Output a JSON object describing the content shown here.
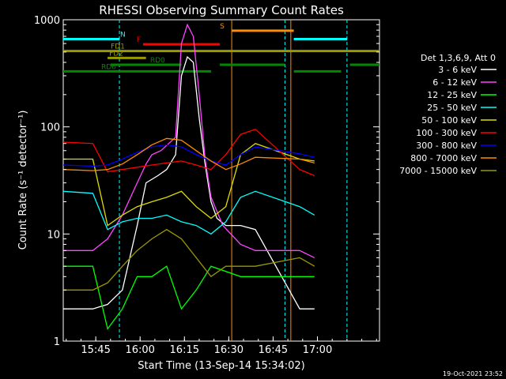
{
  "chart_data": {
    "type": "line",
    "title": "RHESSI Observing Summary Count Rates",
    "xlabel": "Start Time (13-Sep-14 15:34:02)",
    "ylabel": "Count Rate (s⁻¹ detector⁻¹)",
    "y_scale": "log",
    "ylim": [
      1,
      1000
    ],
    "xlim_minutes": [
      0,
      107
    ],
    "x_ticks": [
      {
        "label": "15:45",
        "t": 11
      },
      {
        "label": "16:00",
        "t": 26
      },
      {
        "label": "16:15",
        "t": 41
      },
      {
        "label": "16:30",
        "t": 56
      },
      {
        "label": "16:45",
        "t": 71
      },
      {
        "label": "17:00",
        "t": 86
      }
    ],
    "y_ticks": [
      {
        "label": "1",
        "v": 1
      },
      {
        "label": "10",
        "v": 10
      },
      {
        "label": "100",
        "v": 100
      },
      {
        "label": "1000",
        "v": 1000
      }
    ],
    "legend_header": "Det 1,3,6,9, Att 0",
    "legend_placement": "right",
    "timestamp": "19-Oct-2021 23:52",
    "series": [
      {
        "name": "3 - 6 keV",
        "color": "#ffffff",
        "points": [
          [
            0,
            2
          ],
          [
            10,
            2
          ],
          [
            15,
            2.2
          ],
          [
            20,
            3
          ],
          [
            25,
            12
          ],
          [
            28,
            30
          ],
          [
            32,
            35
          ],
          [
            35,
            40
          ],
          [
            38,
            55
          ],
          [
            40,
            300
          ],
          [
            42,
            450
          ],
          [
            44,
            400
          ],
          [
            46,
            120
          ],
          [
            48,
            45
          ],
          [
            50,
            20
          ],
          [
            52,
            14
          ],
          [
            55,
            12
          ],
          [
            60,
            12
          ],
          [
            65,
            11
          ],
          [
            80,
            2
          ],
          [
            85,
            2
          ]
        ]
      },
      {
        "name": "6 - 12 keV",
        "color": "#ff44ff",
        "points": [
          [
            0,
            7
          ],
          [
            10,
            7
          ],
          [
            15,
            9
          ],
          [
            20,
            15
          ],
          [
            25,
            30
          ],
          [
            28,
            45
          ],
          [
            30,
            55
          ],
          [
            33,
            60
          ],
          [
            38,
            80
          ],
          [
            40,
            600
          ],
          [
            42,
            900
          ],
          [
            44,
            700
          ],
          [
            46,
            200
          ],
          [
            48,
            50
          ],
          [
            50,
            22
          ],
          [
            54,
            12
          ],
          [
            60,
            8
          ],
          [
            65,
            7
          ],
          [
            80,
            7
          ],
          [
            85,
            6
          ]
        ]
      },
      {
        "name": "12 - 25 keV",
        "color": "#00ff00",
        "points": [
          [
            0,
            5
          ],
          [
            10,
            5
          ],
          [
            15,
            1.3
          ],
          [
            20,
            2
          ],
          [
            25,
            4
          ],
          [
            30,
            4
          ],
          [
            35,
            5
          ],
          [
            40,
            2
          ],
          [
            45,
            3
          ],
          [
            50,
            5
          ],
          [
            60,
            4
          ],
          [
            65,
            4
          ],
          [
            80,
            4
          ],
          [
            85,
            4
          ]
        ]
      },
      {
        "name": "25 - 50 keV",
        "color": "#00ffff",
        "points": [
          [
            0,
            25
          ],
          [
            10,
            24
          ],
          [
            15,
            11
          ],
          [
            20,
            13
          ],
          [
            25,
            14
          ],
          [
            30,
            14
          ],
          [
            35,
            15
          ],
          [
            40,
            13
          ],
          [
            45,
            12
          ],
          [
            50,
            10
          ],
          [
            55,
            13
          ],
          [
            60,
            22
          ],
          [
            65,
            25
          ],
          [
            80,
            18
          ],
          [
            85,
            15
          ]
        ]
      },
      {
        "name": "50 - 100 keV",
        "color": "#dddd00",
        "points": [
          [
            0,
            50
          ],
          [
            10,
            50
          ],
          [
            15,
            12
          ],
          [
            20,
            15
          ],
          [
            25,
            18
          ],
          [
            30,
            20
          ],
          [
            35,
            22
          ],
          [
            40,
            25
          ],
          [
            45,
            18
          ],
          [
            50,
            14
          ],
          [
            55,
            18
          ],
          [
            60,
            55
          ],
          [
            65,
            70
          ],
          [
            80,
            50
          ],
          [
            85,
            48
          ]
        ]
      },
      {
        "name": "100 - 300 keV",
        "color": "#ff0000",
        "points": [
          [
            0,
            72
          ],
          [
            10,
            70
          ],
          [
            15,
            38
          ],
          [
            20,
            40
          ],
          [
            25,
            42
          ],
          [
            30,
            44
          ],
          [
            35,
            46
          ],
          [
            40,
            48
          ],
          [
            45,
            44
          ],
          [
            50,
            40
          ],
          [
            55,
            55
          ],
          [
            60,
            85
          ],
          [
            65,
            95
          ],
          [
            80,
            40
          ],
          [
            85,
            35
          ]
        ]
      },
      {
        "name": "300 - 800 keV",
        "color": "#0000ff",
        "points": [
          [
            0,
            44
          ],
          [
            10,
            43
          ],
          [
            15,
            44
          ],
          [
            20,
            50
          ],
          [
            25,
            58
          ],
          [
            30,
            65
          ],
          [
            35,
            68
          ],
          [
            40,
            65
          ],
          [
            45,
            55
          ],
          [
            50,
            48
          ],
          [
            55,
            44
          ],
          [
            60,
            55
          ],
          [
            65,
            65
          ],
          [
            80,
            56
          ],
          [
            85,
            52
          ]
        ]
      },
      {
        "name": "800 - 7000 keV",
        "color": "#ff8c00",
        "points": [
          [
            0,
            40
          ],
          [
            10,
            39
          ],
          [
            15,
            40
          ],
          [
            20,
            45
          ],
          [
            25,
            55
          ],
          [
            30,
            68
          ],
          [
            35,
            78
          ],
          [
            40,
            75
          ],
          [
            45,
            60
          ],
          [
            50,
            48
          ],
          [
            55,
            40
          ],
          [
            60,
            45
          ],
          [
            65,
            52
          ],
          [
            80,
            50
          ],
          [
            85,
            46
          ]
        ]
      },
      {
        "name": "7000 - 15000 keV",
        "color": "#999900",
        "points": [
          [
            0,
            3
          ],
          [
            10,
            3
          ],
          [
            15,
            3.5
          ],
          [
            20,
            5
          ],
          [
            25,
            7
          ],
          [
            30,
            9
          ],
          [
            35,
            11
          ],
          [
            40,
            9
          ],
          [
            45,
            6
          ],
          [
            50,
            4
          ],
          [
            55,
            5
          ],
          [
            60,
            5
          ],
          [
            65,
            5
          ],
          [
            80,
            6
          ],
          [
            85,
            5
          ]
        ]
      }
    ],
    "vertical_markers": [
      {
        "t": 19,
        "color": "#00ffff"
      },
      {
        "t": 57,
        "color": "#ff8c00"
      },
      {
        "t": 75,
        "color": "#00ffff"
      },
      {
        "t": 77,
        "color": "#ff8c00"
      },
      {
        "t": 96,
        "color": "#00ffff"
      }
    ],
    "status_bars": [
      {
        "label": "N",
        "color": "#00ffff",
        "v": 660,
        "segments": [
          [
            0,
            19
          ],
          [
            78,
            96
          ]
        ]
      },
      {
        "label": "S",
        "color": "#ff8c00",
        "v": 790,
        "segments": [
          [
            57,
            78
          ]
        ]
      },
      {
        "label": "F",
        "color": "#ff0000",
        "v": 590,
        "segments": [
          [
            27,
            53
          ]
        ]
      },
      {
        "label": "FD1",
        "color": "#999900",
        "v": 510,
        "segments": [
          [
            0,
            107
          ]
        ]
      },
      {
        "label": "FD2",
        "color": "#999900",
        "v": 440,
        "segments": [
          [
            15,
            28
          ]
        ]
      },
      {
        "label": "RD0",
        "color": "#008800",
        "v": 380,
        "segments": [
          [
            16,
            40
          ],
          [
            53,
            75
          ],
          [
            97,
            107
          ]
        ]
      },
      {
        "label": "RD6",
        "color": "#008800",
        "v": 330,
        "segments": [
          [
            0,
            50
          ],
          [
            78,
            94
          ]
        ]
      }
    ]
  }
}
